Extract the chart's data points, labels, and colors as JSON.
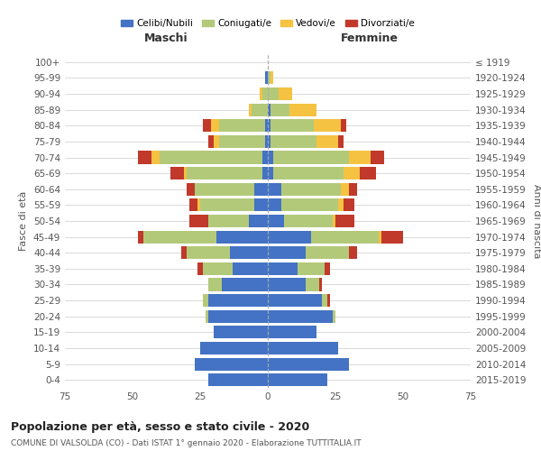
{
  "age_groups": [
    "0-4",
    "5-9",
    "10-14",
    "15-19",
    "20-24",
    "25-29",
    "30-34",
    "35-39",
    "40-44",
    "45-49",
    "50-54",
    "55-59",
    "60-64",
    "65-69",
    "70-74",
    "75-79",
    "80-84",
    "85-89",
    "90-94",
    "95-99",
    "100+"
  ],
  "birth_years": [
    "2015-2019",
    "2010-2014",
    "2005-2009",
    "2000-2004",
    "1995-1999",
    "1990-1994",
    "1985-1989",
    "1980-1984",
    "1975-1979",
    "1970-1974",
    "1965-1969",
    "1960-1964",
    "1955-1959",
    "1950-1954",
    "1945-1949",
    "1940-1944",
    "1935-1939",
    "1930-1934",
    "1925-1929",
    "1920-1924",
    "≤ 1919"
  ],
  "maschi": {
    "celibi": [
      22,
      27,
      25,
      20,
      22,
      22,
      17,
      13,
      14,
      19,
      7,
      5,
      5,
      2,
      2,
      1,
      1,
      0,
      0,
      1,
      0
    ],
    "coniugati": [
      0,
      0,
      0,
      0,
      1,
      2,
      5,
      11,
      16,
      27,
      15,
      20,
      22,
      28,
      38,
      17,
      17,
      6,
      2,
      0,
      0
    ],
    "vedovi": [
      0,
      0,
      0,
      0,
      0,
      0,
      0,
      0,
      0,
      0,
      0,
      1,
      0,
      1,
      3,
      2,
      3,
      1,
      1,
      0,
      0
    ],
    "divorziati": [
      0,
      0,
      0,
      0,
      0,
      0,
      0,
      2,
      2,
      2,
      7,
      3,
      3,
      5,
      5,
      2,
      3,
      0,
      0,
      0,
      0
    ]
  },
  "femmine": {
    "nubili": [
      22,
      30,
      26,
      18,
      24,
      20,
      14,
      11,
      14,
      16,
      6,
      5,
      5,
      2,
      2,
      1,
      1,
      1,
      0,
      0,
      0
    ],
    "coniugate": [
      0,
      0,
      0,
      0,
      1,
      2,
      5,
      10,
      16,
      25,
      18,
      21,
      22,
      26,
      28,
      17,
      16,
      7,
      4,
      1,
      0
    ],
    "vedove": [
      0,
      0,
      0,
      0,
      0,
      0,
      0,
      0,
      0,
      1,
      1,
      2,
      3,
      6,
      8,
      8,
      10,
      10,
      5,
      1,
      0
    ],
    "divorziate": [
      0,
      0,
      0,
      0,
      0,
      1,
      1,
      2,
      3,
      8,
      7,
      4,
      3,
      6,
      5,
      2,
      2,
      0,
      0,
      0,
      0
    ]
  },
  "colors": {
    "celibi": "#4472c4",
    "coniugati": "#b3c97a",
    "vedovi": "#f5c242",
    "divorziati": "#c0392b"
  },
  "xlim": 75,
  "title": "Popolazione per età, sesso e stato civile - 2020",
  "subtitle": "COMUNE DI VALSOLDA (CO) - Dati ISTAT 1° gennaio 2020 - Elaborazione TUTTITALIA.IT",
  "ylabel_left": "Fasce di età",
  "ylabel_right": "Anni di nascita",
  "xlabel_left": "Maschi",
  "xlabel_right": "Femmine",
  "legend_labels": [
    "Celibi/Nubili",
    "Coniugati/e",
    "Vedovi/e",
    "Divorziati/e"
  ],
  "bg_color": "#ffffff",
  "grid_color": "#cccccc"
}
